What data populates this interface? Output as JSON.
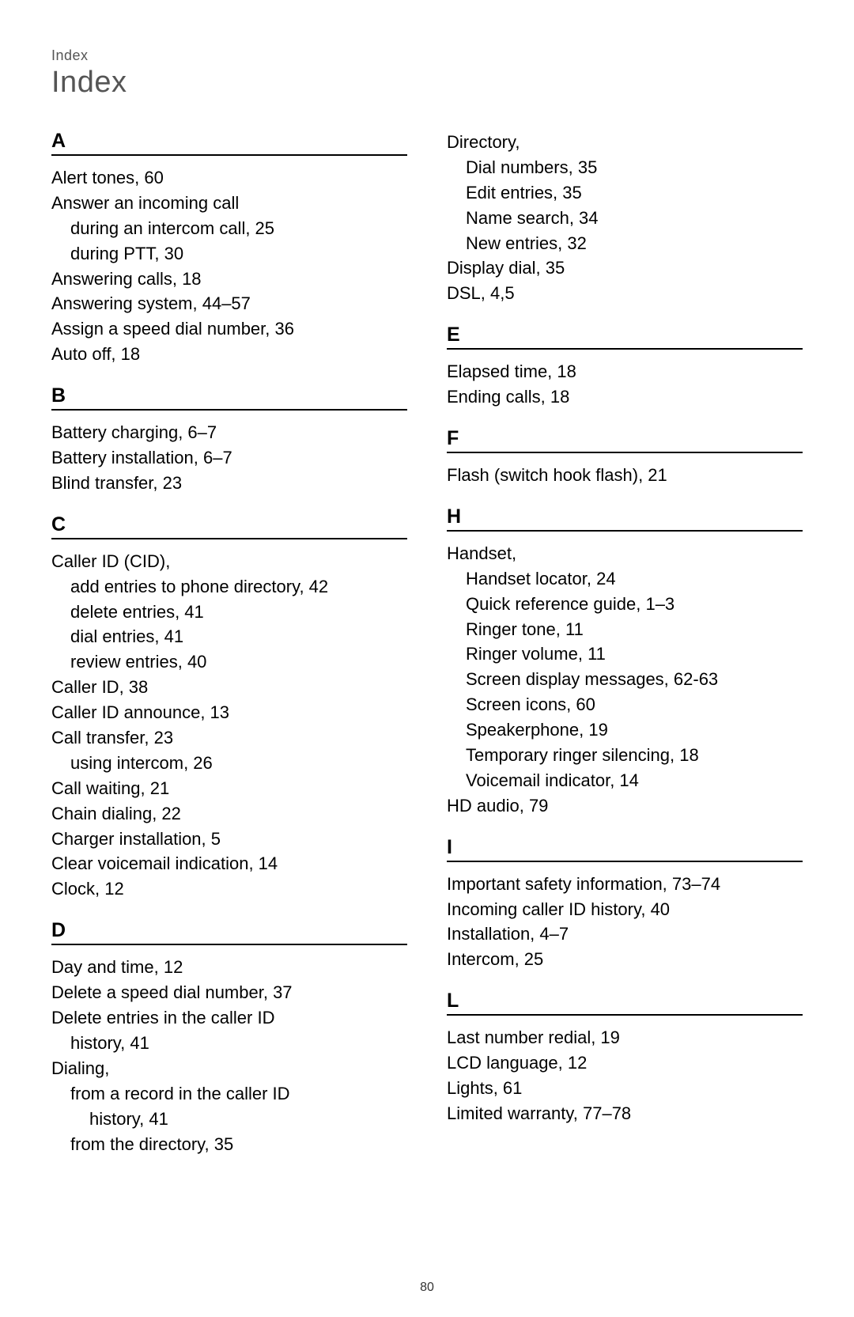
{
  "breadcrumb": "Index",
  "title": "Index",
  "page_number": "80",
  "left_col": [
    {
      "type": "letter",
      "text": "A",
      "first": true
    },
    {
      "type": "line",
      "text": "Alert tones, 60"
    },
    {
      "type": "line",
      "text": "Answer an incoming call"
    },
    {
      "type": "sub1",
      "text": "during an intercom call, 25"
    },
    {
      "type": "sub1",
      "text": "during PTT, 30"
    },
    {
      "type": "line",
      "text": "Answering calls, 18"
    },
    {
      "type": "line",
      "text": "Answering system, 44–57"
    },
    {
      "type": "line",
      "text": "Assign a speed dial number, 36"
    },
    {
      "type": "line",
      "text": "Auto off, 18"
    },
    {
      "type": "letter",
      "text": "B"
    },
    {
      "type": "line",
      "text": "Battery charging, 6–7"
    },
    {
      "type": "line",
      "text": "Battery installation, 6–7"
    },
    {
      "type": "line",
      "text": "Blind transfer, 23"
    },
    {
      "type": "letter",
      "text": "C"
    },
    {
      "type": "line",
      "text": "Caller ID (CID),"
    },
    {
      "type": "sub1",
      "text": "add entries to phone directory, 42"
    },
    {
      "type": "sub1",
      "text": "delete entries, 41"
    },
    {
      "type": "sub1",
      "text": "dial entries, 41"
    },
    {
      "type": "sub1",
      "text": "review entries, 40"
    },
    {
      "type": "line",
      "text": "Caller ID, 38"
    },
    {
      "type": "line",
      "text": "Caller ID announce, 13"
    },
    {
      "type": "line",
      "text": "Call transfer, 23"
    },
    {
      "type": "sub1",
      "text": "using intercom, 26"
    },
    {
      "type": "line",
      "text": "Call waiting, 21"
    },
    {
      "type": "line",
      "text": "Chain dialing, 22"
    },
    {
      "type": "line",
      "text": "Charger installation, 5"
    },
    {
      "type": "line",
      "text": "Clear voicemail indication, 14"
    },
    {
      "type": "line",
      "text": "Clock, 12"
    },
    {
      "type": "letter",
      "text": "D"
    },
    {
      "type": "line",
      "text": "Day and time, 12"
    },
    {
      "type": "line",
      "text": "Delete a speed dial number, 37"
    },
    {
      "type": "line",
      "text": "Delete entries in the caller ID"
    },
    {
      "type": "sub1",
      "text": "history, 41"
    },
    {
      "type": "line",
      "text": "Dialing,"
    },
    {
      "type": "sub1",
      "text": "from a record in the caller ID"
    },
    {
      "type": "sub2",
      "text": "history, 41"
    },
    {
      "type": "sub1",
      "text": "from the directory, 35"
    }
  ],
  "right_col": [
    {
      "type": "line",
      "text": "Directory,"
    },
    {
      "type": "sub1",
      "text": "Dial numbers, 35"
    },
    {
      "type": "sub1",
      "text": "Edit entries, 35"
    },
    {
      "type": "sub1",
      "text": "Name search, 34"
    },
    {
      "type": "sub1",
      "text": "New entries, 32"
    },
    {
      "type": "line",
      "text": "Display dial, 35"
    },
    {
      "type": "line",
      "text": "DSL, 4,5"
    },
    {
      "type": "letter",
      "text": "E"
    },
    {
      "type": "line",
      "text": "Elapsed time, 18"
    },
    {
      "type": "line",
      "text": "Ending calls, 18"
    },
    {
      "type": "letter",
      "text": "F"
    },
    {
      "type": "line",
      "text": "Flash (switch hook flash), 21"
    },
    {
      "type": "letter",
      "text": "H"
    },
    {
      "type": "line",
      "text": "Handset,"
    },
    {
      "type": "sub1",
      "text": "Handset locator, 24"
    },
    {
      "type": "sub1",
      "text": "Quick reference guide, 1–3"
    },
    {
      "type": "sub1",
      "text": "Ringer tone, 11"
    },
    {
      "type": "sub1",
      "text": "Ringer volume, 11"
    },
    {
      "type": "sub1",
      "text": "Screen display messages, 62-63"
    },
    {
      "type": "sub1",
      "text": "Screen icons, 60"
    },
    {
      "type": "sub1",
      "text": "Speakerphone, 19"
    },
    {
      "type": "sub1",
      "text": "Temporary ringer silencing, 18"
    },
    {
      "type": "sub1",
      "text": "Voicemail indicator, 14"
    },
    {
      "type": "line",
      "text": "HD audio, 79"
    },
    {
      "type": "letter",
      "text": "I"
    },
    {
      "type": "line",
      "text": "Important safety information, 73–74"
    },
    {
      "type": "line",
      "text": "Incoming caller ID history, 40"
    },
    {
      "type": "line",
      "text": "Installation, 4–7"
    },
    {
      "type": "line",
      "text": "Intercom, 25"
    },
    {
      "type": "letter",
      "text": "L"
    },
    {
      "type": "line",
      "text": "Last number redial, 19"
    },
    {
      "type": "line",
      "text": "LCD language, 12"
    },
    {
      "type": "line",
      "text": "Lights, 61"
    },
    {
      "type": "line",
      "text": "Limited warranty, 77–78"
    }
  ]
}
